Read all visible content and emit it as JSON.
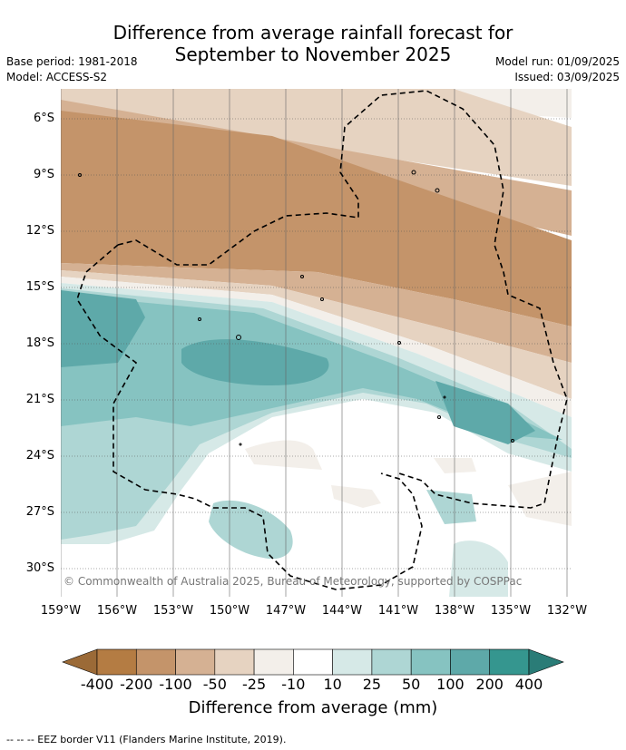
{
  "title": {
    "line1": "Difference from average rainfall forecast for",
    "line2": "September to November 2025"
  },
  "meta_left": {
    "base_period": "Base period: 1981-2018",
    "model": "Model: ACCESS-S2"
  },
  "meta_right": {
    "model_run": "Model run: 01/09/2025",
    "issued": "Issued: 03/09/2025"
  },
  "map": {
    "lat_labels": [
      "6°S",
      "9°S",
      "12°S",
      "15°S",
      "18°S",
      "21°S",
      "24°S",
      "27°S",
      "30°S"
    ],
    "lon_labels": [
      "159°W",
      "156°W",
      "153°W",
      "150°W",
      "147°W",
      "144°W",
      "141°W",
      "138°W",
      "135°W",
      "132°W"
    ],
    "copyright": "© Commonwealth of Australia 2025, Bureau of Meteorology, supported by COSPPac",
    "grid": true,
    "boundary": "EEZ border (dashed)"
  },
  "colorbar": {
    "labels": [
      "-400",
      "-200",
      "-100",
      "-50",
      "-25",
      "-10",
      "10",
      "25",
      "50",
      "100",
      "200",
      "400"
    ],
    "colors": [
      "#9b6a37",
      "#b47c43",
      "#c4946a",
      "#d5b193",
      "#e6d3c1",
      "#f3efea",
      "#ffffff",
      "#d6e9e7",
      "#aed6d4",
      "#86c3c1",
      "#5ea9a9",
      "#35968f",
      "#2a7c77"
    ],
    "title": "Difference from average (mm)"
  },
  "footnote": "--  --  -- EEZ border V11 (Flanders Marine Institute, 2019)."
}
